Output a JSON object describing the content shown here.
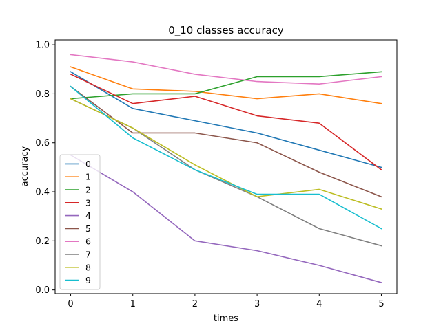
{
  "chart_data": {
    "type": "line",
    "title": "0_10 classes accuracy",
    "xlabel": "times",
    "ylabel": "accuracy",
    "x": [
      0,
      1,
      2,
      3,
      4,
      5
    ],
    "xlim": [
      -0.25,
      5.25
    ],
    "ylim": [
      -0.015,
      1.02
    ],
    "xticks": [
      0,
      1,
      2,
      3,
      4,
      5
    ],
    "yticks": [
      0.0,
      0.2,
      0.4,
      0.6,
      0.8,
      1.0
    ],
    "xtick_labels": [
      "0",
      "1",
      "2",
      "3",
      "4",
      "5"
    ],
    "ytick_labels": [
      "0.0",
      "0.2",
      "0.4",
      "0.6",
      "0.8",
      "1.0"
    ],
    "grid": false,
    "legend_position": "lower-left",
    "series": [
      {
        "name": "0",
        "color": "#1f77b4",
        "values": [
          0.89,
          0.74,
          0.69,
          0.64,
          0.57,
          0.5
        ]
      },
      {
        "name": "1",
        "color": "#ff7f0e",
        "values": [
          0.91,
          0.82,
          0.81,
          0.78,
          0.8,
          0.76
        ]
      },
      {
        "name": "2",
        "color": "#2ca02c",
        "values": [
          0.78,
          0.8,
          0.8,
          0.87,
          0.87,
          0.89
        ]
      },
      {
        "name": "3",
        "color": "#d62728",
        "values": [
          0.88,
          0.76,
          0.79,
          0.71,
          0.68,
          0.49
        ]
      },
      {
        "name": "4",
        "color": "#9467bd",
        "values": [
          0.55,
          0.4,
          0.2,
          0.16,
          0.1,
          0.03
        ]
      },
      {
        "name": "5",
        "color": "#8c564b",
        "values": [
          0.83,
          0.64,
          0.64,
          0.6,
          0.48,
          0.38
        ]
      },
      {
        "name": "6",
        "color": "#e377c2",
        "values": [
          0.96,
          0.93,
          0.88,
          0.85,
          0.84,
          0.87
        ]
      },
      {
        "name": "7",
        "color": "#7f7f7f",
        "values": [
          0.78,
          0.66,
          0.49,
          0.38,
          0.25,
          0.18
        ]
      },
      {
        "name": "8",
        "color": "#bcbd22",
        "values": [
          0.78,
          0.66,
          0.51,
          0.38,
          0.41,
          0.33
        ]
      },
      {
        "name": "9",
        "color": "#17becf",
        "values": [
          0.83,
          0.62,
          0.49,
          0.39,
          0.39,
          0.25
        ]
      }
    ]
  }
}
